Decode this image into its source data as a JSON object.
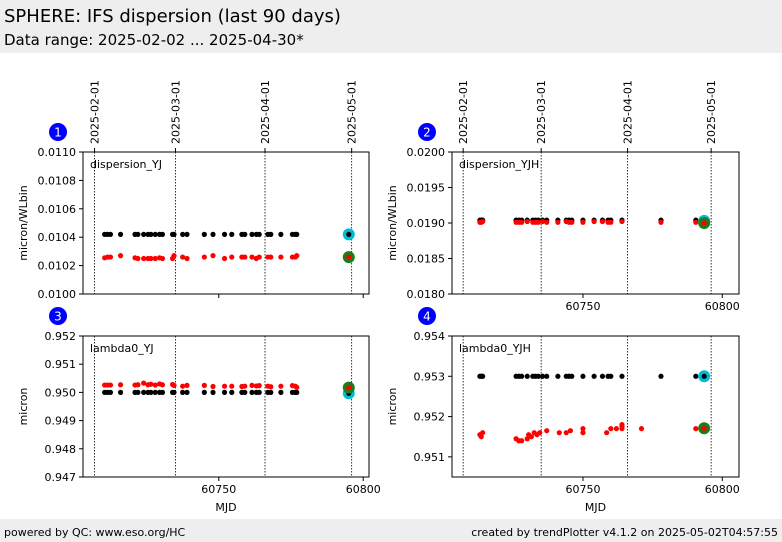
{
  "header": {
    "title": "SPHERE: IFS dispersion (last 90 days)",
    "subtitle": "Data range: 2025-02-02 ... 2025-04-30*"
  },
  "footer": {
    "left": "powered by QC: www.eso.org/HC",
    "right": "created by trendPlotter v4.1.2 on 2025-05-02T04:57:55"
  },
  "colors": {
    "series_a": "#000000",
    "series_b": "#ff0000",
    "last_a": "#00bcd4",
    "last_b": "#1a7f1a",
    "marker": "#0000ff"
  },
  "top_axis": {
    "date_labels": [
      "2025-02-01",
      "2025-03-01",
      "2025-04-01",
      "2025-05-01"
    ],
    "date_mjd": [
      60707,
      60735,
      60766,
      60796
    ]
  },
  "chart_data": [
    {
      "type": "scatter",
      "panel_number": "1",
      "label": "dispersion_YJ",
      "ylabel": "micron/WLbin",
      "xlabel": "",
      "xlim": [
        60703,
        60802
      ],
      "ylim": [
        0.01,
        0.011
      ],
      "xticks": [
        60750,
        60800
      ],
      "xtick_labels": [
        "",
        ""
      ],
      "yticks": [
        0.01,
        0.0102,
        0.0104,
        0.0106,
        0.0108,
        0.011
      ],
      "ytick_labels": [
        "0.0100",
        "0.0102",
        "0.0104",
        "0.0106",
        "0.0108",
        "0.0110"
      ],
      "series": [
        {
          "x": [
            60710.5,
            60711.5,
            60712.5,
            60716,
            60721,
            60722,
            60724,
            60725.5,
            60726.5,
            60728,
            60729.5,
            60730.5,
            60734,
            60734.5,
            60737.5,
            60739,
            60745,
            60748,
            60752,
            60754.5,
            60758,
            60759,
            60761.5,
            60763,
            60764,
            60767,
            60768,
            60771.5,
            60775.5,
            60776.5,
            60777
          ],
          "y": [
            0.01042,
            0.01042,
            0.01042,
            0.01042,
            0.01042,
            0.01042,
            0.01042,
            0.01042,
            0.01042,
            0.01042,
            0.01042,
            0.01042,
            0.01042,
            0.01042,
            0.01042,
            0.01042,
            0.01042,
            0.01042,
            0.01042,
            0.01042,
            0.01042,
            0.01042,
            0.01042,
            0.01042,
            0.01042,
            0.01042,
            0.01042,
            0.01042,
            0.01042,
            0.01042,
            0.01042
          ]
        },
        {
          "x": [
            60710.5,
            60711.5,
            60712.5,
            60716,
            60721,
            60722,
            60724,
            60725.5,
            60726.5,
            60728,
            60729.5,
            60730.5,
            60734,
            60734.5,
            60737.5,
            60739,
            60745,
            60748,
            60752,
            60754.5,
            60758,
            60759,
            60761.5,
            60763,
            60764,
            60767,
            60768,
            60771.5,
            60775.5,
            60776.5,
            60777
          ],
          "y": [
            0.010255,
            0.01026,
            0.01026,
            0.01027,
            0.010255,
            0.01025,
            0.01025,
            0.01025,
            0.01025,
            0.01025,
            0.010255,
            0.01025,
            0.01025,
            0.01027,
            0.01026,
            0.01025,
            0.01026,
            0.01027,
            0.01025,
            0.01026,
            0.01026,
            0.01026,
            0.01026,
            0.01025,
            0.01026,
            0.01026,
            0.01026,
            0.01026,
            0.01026,
            0.01026,
            0.01027
          ]
        }
      ],
      "highlight": {
        "x": 60795,
        "y": [
          0.01042,
          0.01026
        ]
      }
    },
    {
      "type": "scatter",
      "panel_number": "2",
      "label": "dispersion_YJH",
      "ylabel": "micron/WLbin",
      "xlabel": "",
      "xlim": [
        60703,
        60806
      ],
      "ylim": [
        0.018,
        0.02
      ],
      "xticks": [
        60750,
        60800
      ],
      "xtick_labels": [
        "60750",
        "60800"
      ],
      "yticks": [
        0.018,
        0.0185,
        0.019,
        0.0195,
        0.02
      ],
      "ytick_labels": [
        "0.0180",
        "0.0185",
        "0.0190",
        "0.0195",
        "0.0200"
      ],
      "series": [
        {
          "x": [
            60713,
            60713.5,
            60714,
            60726,
            60727,
            60728,
            60730,
            60732,
            60733,
            60734,
            60735.5,
            60737,
            60741,
            60744,
            60745,
            60746,
            60750,
            60754,
            60757,
            60759,
            60760,
            60764,
            60778,
            60790.5
          ],
          "y": [
            0.01904,
            0.01904,
            0.01904,
            0.01904,
            0.01904,
            0.01904,
            0.01904,
            0.01904,
            0.01904,
            0.01904,
            0.01904,
            0.01904,
            0.01904,
            0.01904,
            0.01904,
            0.01904,
            0.01904,
            0.01904,
            0.01904,
            0.01904,
            0.01904,
            0.01904,
            0.01904,
            0.01904
          ]
        },
        {
          "x": [
            60713,
            60713.5,
            60714,
            60726,
            60727,
            60728,
            60730,
            60732,
            60733,
            60734,
            60735.5,
            60737,
            60741,
            60744,
            60745,
            60746,
            60750,
            60754,
            60757,
            60759,
            60760,
            60764,
            60778,
            60790.5
          ],
          "y": [
            0.01901,
            0.01901,
            0.01902,
            0.01901,
            0.01901,
            0.01901,
            0.01902,
            0.01901,
            0.01901,
            0.01901,
            0.01902,
            0.01901,
            0.01901,
            0.01902,
            0.01901,
            0.01901,
            0.01901,
            0.01902,
            0.01902,
            0.01901,
            0.01901,
            0.01902,
            0.01901,
            0.01901
          ]
        }
      ],
      "highlight": {
        "x": 60793.5,
        "y": [
          0.01903,
          0.019
        ]
      }
    },
    {
      "type": "scatter",
      "panel_number": "3",
      "label": "lambda0_YJ",
      "ylabel": "micron",
      "xlabel": "MJD",
      "xlim": [
        60703,
        60802
      ],
      "ylim": [
        0.947,
        0.952
      ],
      "xticks": [
        60750,
        60800
      ],
      "xtick_labels": [
        "60750",
        "60800"
      ],
      "yticks": [
        0.947,
        0.948,
        0.949,
        0.95,
        0.951,
        0.952
      ],
      "ytick_labels": [
        "0.947",
        "0.948",
        "0.949",
        "0.950",
        "0.951",
        "0.952"
      ],
      "series": [
        {
          "x": [
            60710.5,
            60711.5,
            60712.5,
            60716,
            60721,
            60722,
            60724,
            60725.5,
            60726.5,
            60728,
            60729.5,
            60730.5,
            60734,
            60734.5,
            60737.5,
            60739,
            60745,
            60748,
            60752,
            60754.5,
            60758,
            60759,
            60761.5,
            60763,
            60764,
            60767,
            60768,
            60771.5,
            60775.5,
            60776.5,
            60777
          ],
          "y": [
            0.95,
            0.95,
            0.95,
            0.95,
            0.95,
            0.95,
            0.95,
            0.95,
            0.95,
            0.95,
            0.95,
            0.95,
            0.95,
            0.95,
            0.95,
            0.95,
            0.95,
            0.95,
            0.95,
            0.95,
            0.95,
            0.95,
            0.95,
            0.95,
            0.95,
            0.95,
            0.95,
            0.95,
            0.95,
            0.95,
            0.95
          ]
        },
        {
          "x": [
            60710.5,
            60711.5,
            60712.5,
            60716,
            60721,
            60722,
            60724,
            60725.5,
            60726.5,
            60728,
            60729.5,
            60730.5,
            60734,
            60734.5,
            60737.5,
            60739,
            60745,
            60748,
            60752,
            60754.5,
            60758,
            60759,
            60761.5,
            60763,
            60764,
            60767,
            60768,
            60771.5,
            60775.5,
            60776.5,
            60777
          ],
          "y": [
            0.95026,
            0.95026,
            0.95026,
            0.95027,
            0.95026,
            0.95027,
            0.95033,
            0.95027,
            0.95029,
            0.95026,
            0.9503,
            0.95027,
            0.95028,
            0.95025,
            0.95022,
            0.95025,
            0.95025,
            0.95021,
            0.95022,
            0.95022,
            0.95021,
            0.95022,
            0.95025,
            0.95023,
            0.95024,
            0.95022,
            0.9502,
            0.95022,
            0.95024,
            0.95022,
            0.95018
          ]
        }
      ],
      "highlight": {
        "x": 60795,
        "y": [
          0.94997,
          0.95017
        ]
      }
    },
    {
      "type": "scatter",
      "panel_number": "4",
      "label": "lambda0_YJH",
      "ylabel": "micron",
      "xlabel": "MJD",
      "xlim": [
        60703,
        60806
      ],
      "ylim": [
        0.9505,
        0.954
      ],
      "xticks": [
        60750,
        60800
      ],
      "xtick_labels": [
        "60750",
        "60800"
      ],
      "yticks": [
        0.951,
        0.952,
        0.953,
        0.954
      ],
      "ytick_labels": [
        "0.951",
        "0.952",
        "0.953",
        "0.954"
      ],
      "series": [
        {
          "x": [
            60713,
            60713.5,
            60714,
            60726,
            60727,
            60728,
            60730,
            60732,
            60733,
            60734,
            60735.5,
            60737,
            60741,
            60744,
            60745,
            60746,
            60750,
            60754,
            60757,
            60759,
            60760,
            60764,
            60778,
            60790.5
          ],
          "y": [
            0.953,
            0.953,
            0.953,
            0.953,
            0.953,
            0.953,
            0.953,
            0.953,
            0.953,
            0.953,
            0.953,
            0.953,
            0.953,
            0.953,
            0.953,
            0.953,
            0.953,
            0.953,
            0.953,
            0.953,
            0.953,
            0.953,
            0.953,
            0.953
          ]
        },
        {
          "x": [
            60713,
            60713.5,
            60714,
            60726,
            60727,
            60728,
            60730,
            60730.5,
            60731.5,
            60732.5,
            60733.5,
            60734.5,
            60737,
            60741.5,
            60744,
            60745.5,
            60750,
            60750,
            60758.5,
            60760,
            60762,
            60764,
            60764,
            60764,
            60771,
            60790.5
          ],
          "y": [
            0.95155,
            0.9515,
            0.9516,
            0.95145,
            0.9514,
            0.9514,
            0.95145,
            0.95155,
            0.9515,
            0.9516,
            0.95155,
            0.9516,
            0.95165,
            0.9516,
            0.9516,
            0.95165,
            0.9517,
            0.9516,
            0.9516,
            0.9517,
            0.9517,
            0.9517,
            0.9518,
            0.95175,
            0.9517,
            0.9517
          ]
        }
      ],
      "highlight": {
        "x": 60793.5,
        "y": [
          0.953,
          0.95171
        ]
      }
    }
  ]
}
